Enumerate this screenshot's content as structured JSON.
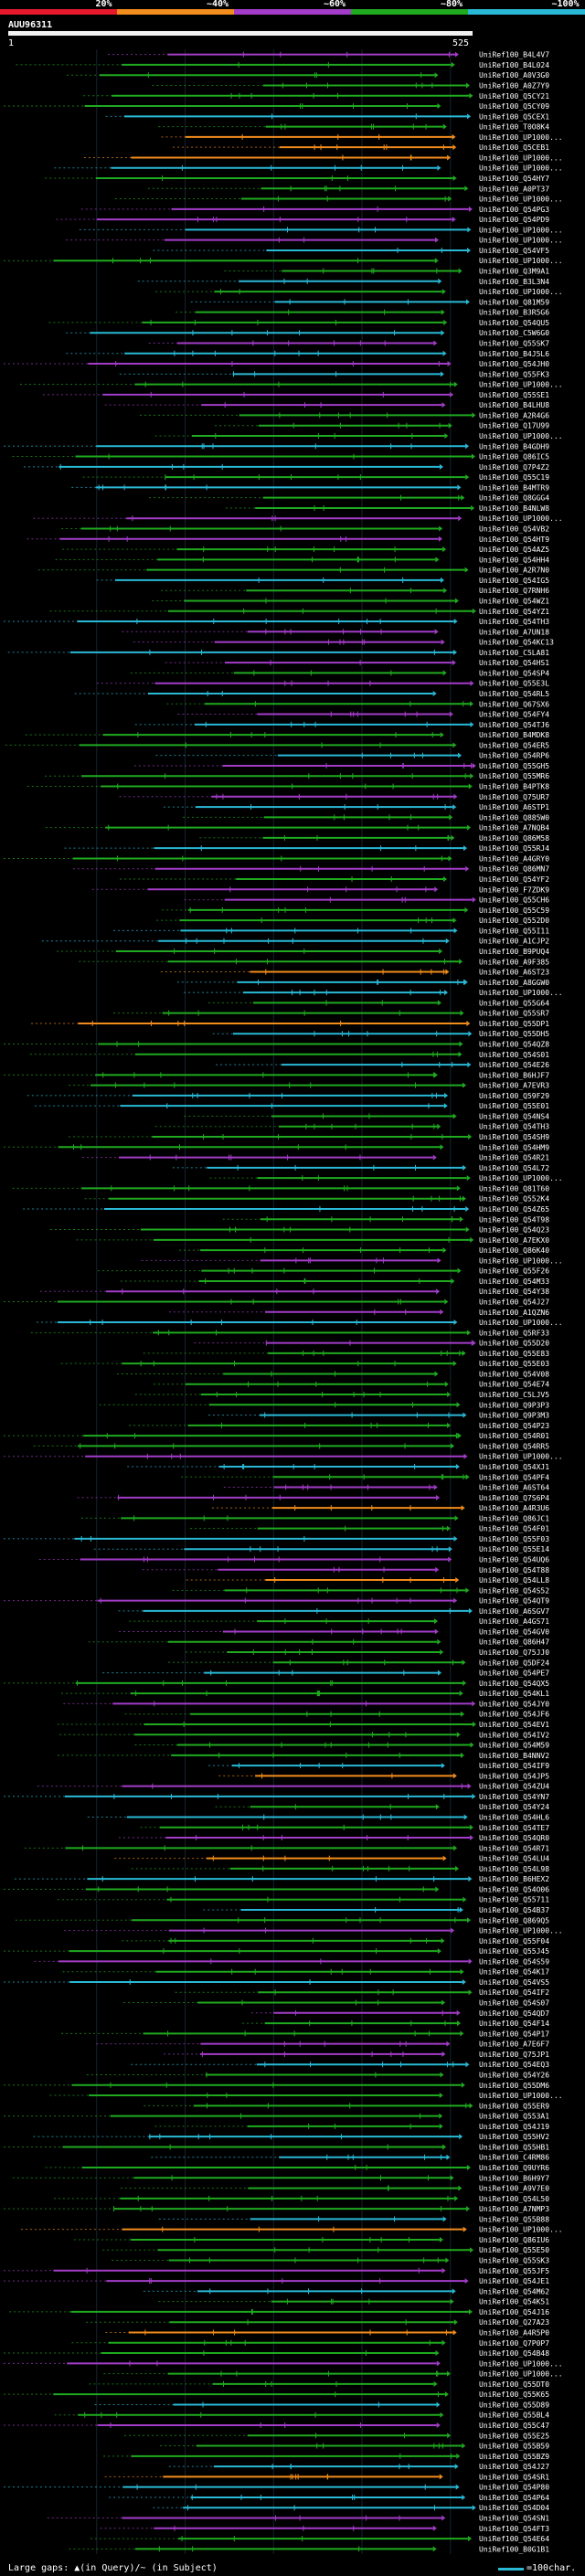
{
  "legend": {
    "labels": [
      "20%",
      "~40%",
      "~60%",
      "~80%",
      "~100%"
    ],
    "colors": [
      "#e8192c",
      "#f28c1c",
      "#a33cc8",
      "#1faa1f",
      "#29b9d6"
    ]
  },
  "query": {
    "title": "AUU96311",
    "start_label": "1",
    "end_label": "525",
    "length": 525,
    "bar_color": "#f2f2f2"
  },
  "chart_data": {
    "type": "alignment-overview",
    "query_length": 525,
    "footer": {
      "gaps_note": "Large gaps: ▲(in Query)/~ (in Subject)",
      "scale_label": "=100char."
    },
    "hit_ids": [
      "UniRef100_B4L4V7",
      "UniRef100_B4L024",
      "UniRef100_A0V3G0",
      "UniRef100_A0Z7Y9",
      "UniRef100_Q5CY21",
      "UniRef100_Q5CY09",
      "UniRef100_Q5CEX1",
      "UniRef100_T0O8K4",
      "UniRef100_UP1000...",
      "UniRef100_Q5CEB1",
      "UniRef100_UP1000...",
      "UniRef100_UP1000...",
      "UniRef100_Q54HY7",
      "UniRef100_A0PT37",
      "UniRef100_UP1000...",
      "UniRef100_Q54PG3",
      "UniRef100_Q54PD9",
      "UniRef100_UP1000...",
      "UniRef100_UP1000...",
      "UniRef100_Q54VF5",
      "UniRef100_UP1000...",
      "UniRef100_Q3M9A1",
      "UniRef100_B3L3N4",
      "UniRef100_UP1000...",
      "UniRef100_Q81M59",
      "UniRef100_B3R5G6",
      "UniRef100_Q54QU5",
      "UniRef100_C5W6G0",
      "UniRef100_Q55SK7",
      "UniRef100_B4J5L6",
      "UniRef100_Q54JH0",
      "UniRef100_Q55FK3",
      "UniRef100_UP1000...",
      "UniRef100_Q55SE1",
      "UniRef100_B4LHU8",
      "UniRef100_A2R4G6",
      "UniRef100_Q17U99",
      "UniRef100_UP1000...",
      "UniRef100_B4GDH9",
      "UniRef100_Q86IC5",
      "UniRef100_Q7P4Z2",
      "UniRef100_Q55C19",
      "UniRef100_B4MTR9",
      "UniRef100_Q8GGG4",
      "UniRef100_B4NLW8",
      "UniRef100_UP1000...",
      "UniRef100_Q54VB2",
      "UniRef100_Q54HT9",
      "UniRef100_Q54AZ5",
      "UniRef100_Q54HH4",
      "UniRef100_A2R7N0",
      "UniRef100_Q54IG5",
      "UniRef100_Q7RNH6",
      "UniRef100_Q54WZ1",
      "UniRef100_Q54YZ1",
      "UniRef100_Q54TH3",
      "UniRef100_A7UN18",
      "UniRef100_Q54KC13",
      "UniRef100_C5LA81",
      "UniRef100_Q54HS1",
      "UniRef100_Q54SP4",
      "UniRef100_Q55E3L",
      "UniRef100_Q54RL5",
      "UniRef100_Q67SX6",
      "UniRef100_Q54FY4",
      "UniRef100_Q54TJ6",
      "UniRef100_B4MDK8",
      "UniRef100_Q54ER5",
      "UniRef100_Q54RP6",
      "UniRef100_Q55GH5",
      "UniRef100_Q55MR6",
      "UniRef100_B4PTK8",
      "UniRef100_Q75UR7",
      "UniRef100_A6STP1",
      "UniRef100_Q885W0",
      "UniRef100_A7NQB4",
      "UniRef100_Q86M58",
      "UniRef100_Q55RJ4",
      "UniRef100_A4GRY0",
      "UniRef100_Q86MN7",
      "UniRef100_Q54YF2",
      "UniRef100_F7ZDK9",
      "UniRef100_Q55CH6",
      "UniRef100_Q55C59",
      "UniRef100_Q552D0",
      "UniRef100_Q55I11",
      "UniRef100_A1CJP2",
      "UniRef100_B9PUQ4",
      "UniRef100_A9F385",
      "UniRef100_A6ST23",
      "UniRef100_A8GGW0",
      "UniRef100_UP1000...",
      "UniRef100_Q55G64",
      "UniRef100_Q55SR7",
      "UniRef100_Q55DP1",
      "UniRef100_Q55DH5",
      "UniRef100_Q54QZ8",
      "UniRef100_Q54S01",
      "UniRef100_Q54E26",
      "UniRef100_B6HJF7",
      "UniRef100_A7EVR3",
      "UniRef100_Q59F29",
      "UniRef100_Q55E01",
      "UniRef100_Q54NS4",
      "UniRef100_Q54TH3",
      "UniRef100_Q54SH9",
      "UniRef100_Q54HM9",
      "UniRef100_Q54R21",
      "UniRef100_Q54L72",
      "UniRef100_UP1000...",
      "UniRef100_Q81T60",
      "UniRef100_Q552K4",
      "UniRef100_Q54Z65",
      "UniRef100_Q54T98",
      "UniRef100_Q54Q23",
      "UniRef100_A7EKX0",
      "UniRef100_Q86K40",
      "UniRef100_UP1000...",
      "UniRef100_Q55F26",
      "UniRef100_Q54M33",
      "UniRef100_Q54Y38",
      "UniRef100_Q54J27",
      "UniRef100_A1QZN6",
      "UniRef100_UP1000...",
      "UniRef100_Q5RF33",
      "UniRef100_Q55D20",
      "UniRef100_Q55E83",
      "UniRef100_Q55E03",
      "UniRef100_Q54V08",
      "UniRef100_Q54E74",
      "UniRef100_C5LJV5",
      "UniRef100_Q9P3P3",
      "UniRef100_Q9P3M3",
      "UniRef100_Q54P23",
      "UniRef100_Q54R01",
      "UniRef100_Q54RR5",
      "UniRef100_UP1000...",
      "UniRef100_Q54XJ1",
      "UniRef100_Q54PF4",
      "UniRef100_A6ST64",
      "UniRef100_Q7S6P4",
      "UniRef100_A4R3U6",
      "UniRef100_Q86JC1",
      "UniRef100_Q54F01",
      "UniRef100_Q55F03",
      "UniRef100_Q55E14",
      "UniRef100_Q54UQ6",
      "UniRef100_Q54T88",
      "UniRef100_Q54LL8",
      "UniRef100_Q54S52",
      "UniRef100_Q54QT9",
      "UniRef100_A6SGV7",
      "UniRef100_A4GS71",
      "UniRef100_Q54GV0",
      "UniRef100_Q86H47",
      "UniRef100_Q75JJ0",
      "UniRef100_Q5DF24",
      "UniRef100_Q54PE7",
      "UniRef100_Q54QX5",
      "UniRef100_Q54KL1",
      "UniRef100_Q54JY0",
      "UniRef100_Q54JF6",
      "UniRef100_Q54EV1",
      "UniRef100_Q54IV2",
      "UniRef100_Q54M59",
      "UniRef100_B4NNV2",
      "UniRef100_Q54IF9",
      "UniRef100_Q54JP5",
      "UniRef100_Q54ZU4",
      "UniRef100_Q54YN7",
      "UniRef100_Q54Y24",
      "UniRef100_Q54HL6",
      "UniRef100_Q54TE7",
      "UniRef100_Q54QR0",
      "UniRef100_Q54R71",
      "UniRef100_Q54LU4",
      "UniRef100_Q54L98",
      "UniRef100_B6HEX2",
      "UniRef100_Q54O06",
      "UniRef100_Q55711",
      "UniRef100_Q54B37",
      "UniRef100_Q869Q5",
      "UniRef100_UP1000...",
      "UniRef100_Q55F04",
      "UniRef100_Q55J45",
      "UniRef100_Q54S59",
      "UniRef100_Q54K17",
      "UniRef100_Q54VS5",
      "UniRef100_Q54IF2",
      "UniRef100_Q54S07",
      "UniRef100_Q54QD7",
      "UniRef100_Q54F14",
      "UniRef100_Q54P17",
      "UniRef100_A7E6F7",
      "UniRef100_Q75JP1",
      "UniRef100_Q54EQ3",
      "UniRef100_Q54Y26",
      "UniRef100_Q55DM6",
      "UniRef100_UP1000...",
      "UniRef100_Q55ER9",
      "UniRef100_Q553A1",
      "UniRef100_Q54J19",
      "UniRef100_Q55HV2",
      "UniRef100_Q55HB1",
      "UniRef100_C4RM86",
      "UniRef100_Q9UYR6",
      "UniRef100_B6H9Y7",
      "UniRef100_A9V7E0",
      "UniRef100_Q54L50",
      "UniRef100_A7NMP3",
      "UniRef100_Q55B88",
      "UniRef100_UP1000...",
      "UniRef100_Q86IU6",
      "UniRef100_Q55E50",
      "UniRef100_Q55SK3",
      "UniRef100_Q55JF5",
      "UniRef100_Q54JE1",
      "UniRef100_Q54M62",
      "UniRef100_Q54K51",
      "UniRef100_Q54J16",
      "UniRef100_Q27A23",
      "UniRef100_A4R5P0",
      "UniRef100_Q7P0P7",
      "UniRef100_Q54B48",
      "UniRef100_UP1000...",
      "UniRef100_UP1000...",
      "UniRef100_Q55DT0",
      "UniRef100_Q55K65",
      "UniRef100_Q55D89",
      "UniRef100_Q55BL4",
      "UniRef100_Q55C47",
      "UniRef100_Q55E25",
      "UniRef100_Q55B59",
      "UniRef100_Q55BZ9",
      "UniRef100_Q54J27",
      "UniRef100_Q54SR1",
      "UniRef100_Q54P80",
      "UniRef100_Q54P64",
      "UniRef100_Q54D04",
      "UniRef100_Q54SN1",
      "UniRef100_Q54FT3",
      "UniRef100_Q54E64",
      "UniRef100_B0G1B1"
    ]
  }
}
